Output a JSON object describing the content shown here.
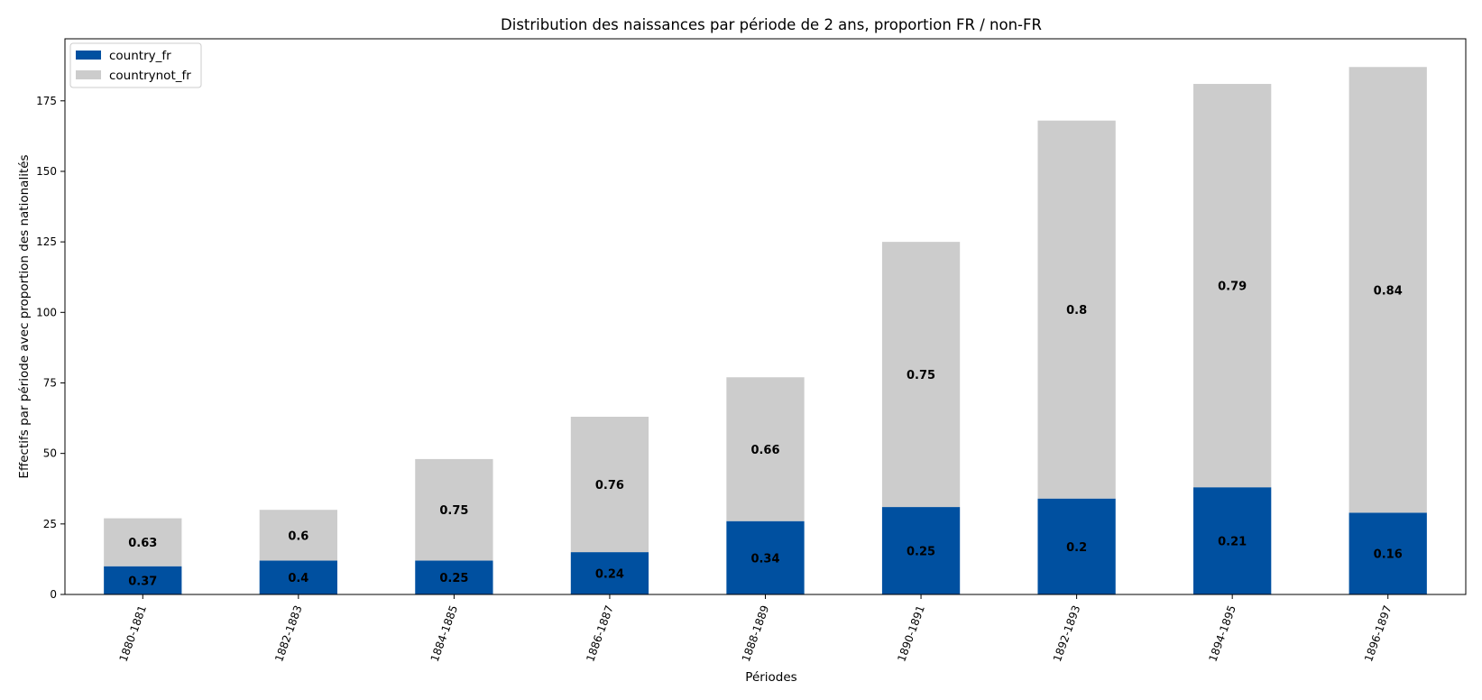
{
  "chart_data": {
    "type": "bar",
    "stacked": true,
    "title": "Distribution des naissances par période de 2 ans, proportion FR / non-FR",
    "xlabel": "Périodes",
    "ylabel": "Effectifs par période avec proportion des nationalités",
    "ylim": [
      0,
      197
    ],
    "yticks": [
      0,
      25,
      50,
      75,
      100,
      125,
      150,
      175
    ],
    "categories": [
      "1880-1881",
      "1882-1883",
      "1884-1885",
      "1886-1887",
      "1888-1889",
      "1890-1891",
      "1892-1893",
      "1894-1895",
      "1896-1897"
    ],
    "series": [
      {
        "name": "country_fr",
        "color": "#0050a0",
        "values": [
          10,
          12,
          12,
          15,
          26,
          31,
          34,
          38,
          29
        ],
        "labels": [
          "0.37",
          "0.4",
          "0.25",
          "0.24",
          "0.34",
          "0.25",
          "0.2",
          "0.21",
          "0.16"
        ]
      },
      {
        "name": "countrynot_fr",
        "color": "#cccccc",
        "values": [
          17,
          18,
          36,
          48,
          51,
          94,
          134,
          143,
          158
        ],
        "labels": [
          "0.63",
          "0.6",
          "0.75",
          "0.76",
          "0.66",
          "0.75",
          "0.8",
          "0.79",
          "0.84"
        ]
      }
    ],
    "legend": "top-left",
    "grid": false,
    "tick_rotation": -70
  }
}
